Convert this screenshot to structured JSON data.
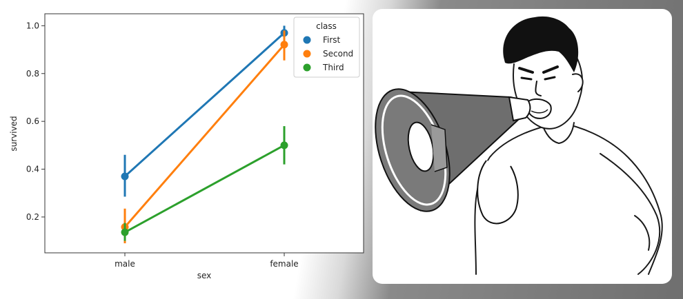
{
  "chart_data": {
    "type": "line",
    "categories": [
      "male",
      "female"
    ],
    "xlabel": "sex",
    "ylabel": "survived",
    "yticks": [
      0.2,
      0.4,
      0.6,
      0.8,
      1.0
    ],
    "ytick_labels": [
      "0.2",
      "0.4",
      "0.6",
      "0.8",
      "1.0"
    ],
    "ylim": [
      0.05,
      1.05
    ],
    "legend_title": "class",
    "legend_position": "top-right",
    "series": [
      {
        "name": "First",
        "color": "#1f77b4",
        "values": [
          0.37,
          0.97
        ],
        "ci_low": [
          0.285,
          0.935
        ],
        "ci_high": [
          0.46,
          1.0
        ]
      },
      {
        "name": "Second",
        "color": "#ff7f0e",
        "values": [
          0.158,
          0.921
        ],
        "ci_low": [
          0.09,
          0.855
        ],
        "ci_high": [
          0.235,
          0.98
        ]
      },
      {
        "name": "Third",
        "color": "#2ca02c",
        "values": [
          0.136,
          0.5
        ],
        "ci_low": [
          0.1,
          0.42
        ],
        "ci_high": [
          0.175,
          0.58
        ]
      }
    ]
  },
  "illustration": {
    "subject": "person-shouting-into-megaphone-icon"
  }
}
